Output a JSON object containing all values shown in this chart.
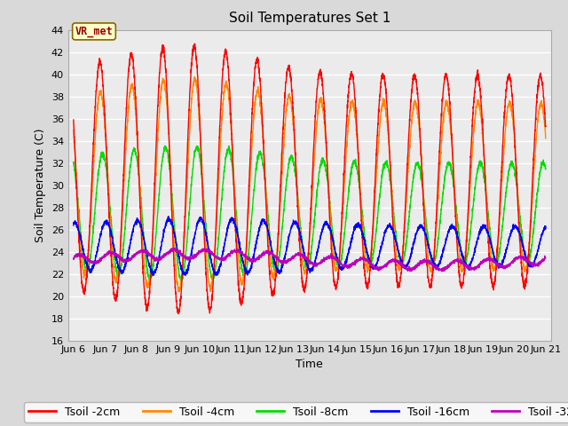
{
  "title": "Soil Temperatures Set 1",
  "xlabel": "Time",
  "ylabel": "Soil Temperature (C)",
  "ylim": [
    16,
    44
  ],
  "xlim_days": [
    5.83,
    21.17
  ],
  "xtick_labels": [
    "Jun 6",
    "Jun 7",
    "Jun 8",
    "Jun 9",
    "Jun 10",
    "Jun 11",
    "Jun 12",
    "Jun 13",
    "Jun 14",
    "Jun 15",
    "Jun 16",
    "Jun 17",
    "Jun 18",
    "Jun 19",
    "Jun 20",
    "Jun 21"
  ],
  "xtick_positions": [
    6,
    7,
    8,
    9,
    10,
    11,
    12,
    13,
    14,
    15,
    16,
    17,
    18,
    19,
    20,
    21
  ],
  "ytick_positions": [
    16,
    18,
    20,
    22,
    24,
    26,
    28,
    30,
    32,
    34,
    36,
    38,
    40,
    42,
    44
  ],
  "colors": {
    "Tsoil -2cm": "#ff0000",
    "Tsoil -4cm": "#ff8800",
    "Tsoil -8cm": "#00dd00",
    "Tsoil -16cm": "#0000ff",
    "Tsoil -32cm": "#bb00bb"
  },
  "annotation_text": "VR_met",
  "annotation_color": "#990000",
  "annotation_bg": "#ffffcc",
  "annotation_border": "#886600",
  "fig_facecolor": "#d9d9d9",
  "ax_facecolor": "#ebebeb",
  "grid_color": "#ffffff",
  "title_fontsize": 11,
  "label_fontsize": 9,
  "tick_fontsize": 8,
  "legend_fontsize": 9
}
